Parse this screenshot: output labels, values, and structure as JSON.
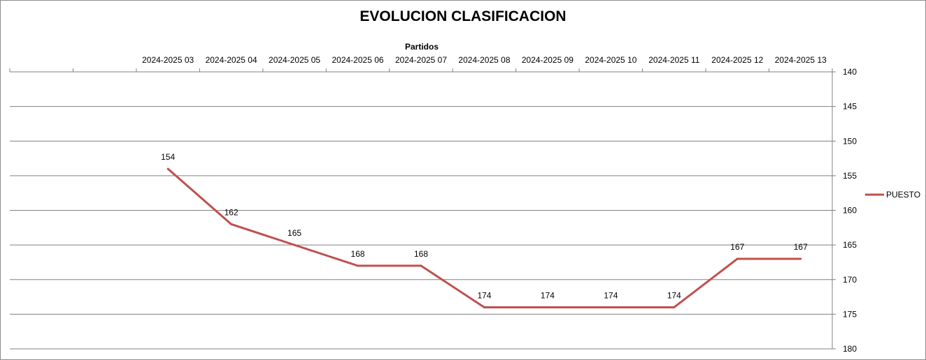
{
  "chart_data": {
    "type": "line",
    "title": "EVOLUCION CLASIFICACION",
    "xlabel": "Partidos",
    "ylabel": "",
    "categories": [
      "",
      "",
      "2024-2025 03",
      "2024-2025 04",
      "2024-2025 05",
      "2024-2025 06",
      "2024-2025 07",
      "2024-2025 08",
      "2024-2025 09",
      "2024-2025 10",
      "2024-2025 11",
      "2024-2025 12",
      "2024-2025 13"
    ],
    "series": [
      {
        "name": "PUESTO",
        "color": "#c0504d",
        "values": [
          null,
          null,
          154,
          162,
          165,
          168,
          168,
          174,
          174,
          174,
          174,
          167,
          167
        ]
      }
    ],
    "ylim": [
      140,
      180
    ],
    "y_reversed": true,
    "y_axis_side": "right",
    "x_axis_position": "top",
    "yticks": [
      140,
      145,
      150,
      155,
      160,
      165,
      170,
      175,
      180
    ],
    "grid": true,
    "data_labels": true,
    "legend": {
      "position": "right",
      "entries": [
        "PUESTO"
      ]
    }
  }
}
